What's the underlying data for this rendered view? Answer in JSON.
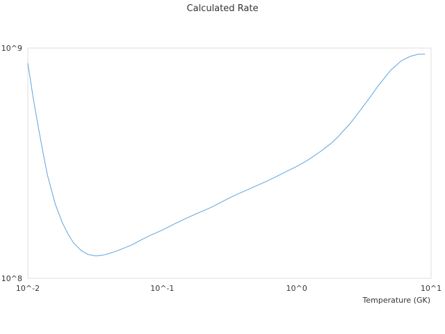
{
  "chart_data": {
    "type": "line",
    "title": "Calculated Rate",
    "xlabel": "Temperature (GK)",
    "ylabel": "",
    "xscale": "log",
    "yscale": "log",
    "xlim": [
      0.01,
      10
    ],
    "ylim": [
      100000000,
      1000000000
    ],
    "grid": false,
    "legend": "none",
    "x_ticks": [
      "10^-2",
      "10^-1",
      "10^0",
      "10^1"
    ],
    "y_ticks": [
      "10^8",
      "10^9"
    ],
    "series": [
      {
        "color": "#5ba3e0",
        "x": [
          0.01,
          0.011,
          0.012,
          0.013,
          0.014,
          0.016,
          0.018,
          0.02,
          0.022,
          0.025,
          0.028,
          0.032,
          0.036,
          0.04,
          0.045,
          0.05,
          0.06,
          0.07,
          0.08,
          0.1,
          0.12,
          0.15,
          0.18,
          0.2,
          0.23,
          0.25,
          0.3,
          0.35,
          0.4,
          0.5,
          0.6,
          0.7,
          0.8,
          1.0,
          1.2,
          1.5,
          1.8,
          2.0,
          2.5,
          3.0,
          3.5,
          4.0,
          5.0,
          6.0,
          7.0,
          8.0,
          9.0
        ],
        "y": [
          860000000,
          600000000,
          450000000,
          350000000,
          280000000,
          210000000,
          175000000,
          155000000,
          142000000,
          132000000,
          127000000,
          125000000,
          126000000,
          128000000,
          131000000,
          134000000,
          140000000,
          147000000,
          153000000,
          162000000,
          171000000,
          182000000,
          191000000,
          196000000,
          203000000,
          208000000,
          220000000,
          230000000,
          238000000,
          252000000,
          264000000,
          276000000,
          287000000,
          306000000,
          325000000,
          355000000,
          385000000,
          408000000,
          470000000,
          540000000,
          610000000,
          680000000,
          800000000,
          880000000,
          920000000,
          940000000,
          940000000
        ]
      }
    ]
  }
}
